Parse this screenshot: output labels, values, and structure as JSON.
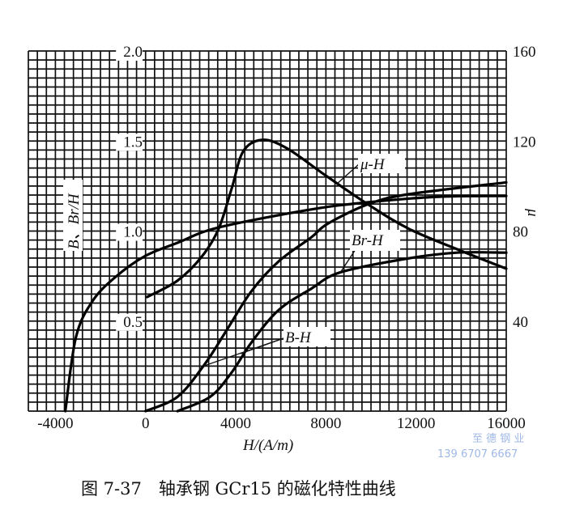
{
  "chart_data": {
    "type": "line",
    "title": "",
    "caption": "图 7-37　轴承钢 GCr15 的磁化特性曲线",
    "xlabel": "H/(A/m)",
    "ylabel_left": "B、Br/H",
    "ylabel_right": "μ",
    "xlim": [
      -5200,
      16000
    ],
    "ylim_left": [
      0,
      2.0
    ],
    "ylim_right": [
      0,
      160
    ],
    "grid": true,
    "x_ticks": [
      "-4000",
      "0",
      "4000",
      "8000",
      "12000",
      "16000"
    ],
    "x_tick_values": [
      -4000,
      0,
      4000,
      8000,
      12000,
      16000
    ],
    "y_left_ticks": [
      "0.5",
      "1.0",
      "1.5",
      "2.0"
    ],
    "y_left_tick_values": [
      0.5,
      1.0,
      1.5,
      2.0
    ],
    "y_right_ticks": [
      "40",
      "80",
      "120",
      "160"
    ],
    "y_right_tick_values": [
      40,
      80,
      120,
      160
    ],
    "series": [
      {
        "axis": "left",
        "points": [
          [
            -3560,
            0
          ],
          [
            -3090,
            0.41
          ],
          [
            -2360,
            0.61
          ],
          [
            -1380,
            0.74
          ],
          [
            -40,
            0.86
          ],
          [
            1420,
            0.935
          ],
          [
            3240,
            1.02
          ],
          [
            7350,
            1.12
          ],
          [
            9890,
            1.16
          ],
          [
            12900,
            1.19
          ],
          [
            16000,
            1.195
          ]
        ]
      },
      {
        "name": "B-H",
        "axis": "left",
        "points": [
          [
            0,
            0
          ],
          [
            1420,
            0.08
          ],
          [
            2620,
            0.26
          ],
          [
            3600,
            0.45
          ],
          [
            4690,
            0.665
          ],
          [
            5890,
            0.83
          ],
          [
            7350,
            0.965
          ],
          [
            8070,
            1.04
          ],
          [
            9890,
            1.15
          ],
          [
            11700,
            1.205
          ],
          [
            16000,
            1.27
          ]
        ]
      },
      {
        "name": "Br-H",
        "axis": "left",
        "points": [
          [
            1420,
            0
          ],
          [
            2870,
            0.08
          ],
          [
            3820,
            0.215
          ],
          [
            4690,
            0.38
          ],
          [
            5890,
            0.56
          ],
          [
            7350,
            0.68
          ],
          [
            8620,
            0.77
          ],
          [
            11500,
            0.845
          ],
          [
            13800,
            0.88
          ],
          [
            16000,
            0.88
          ]
        ]
      },
      {
        "name": "μ-H",
        "axis": "right",
        "points": [
          [
            70,
            50.7
          ],
          [
            1420,
            58
          ],
          [
            2500,
            68.7
          ],
          [
            3240,
            81
          ],
          [
            3820,
            98.9
          ],
          [
            4330,
            115.4
          ],
          [
            5160,
            120.5
          ],
          [
            6250,
            116.9
          ],
          [
            8000,
            104.6
          ],
          [
            9890,
            91.7
          ],
          [
            11700,
            80.9
          ],
          [
            14000,
            71.2
          ],
          [
            16000,
            63.3
          ]
        ]
      }
    ],
    "annotations": {
      "mu_h": "μ-H",
      "br_h": "Br-H",
      "b_h": "B-H"
    }
  },
  "watermark": {
    "name": "至 德 钢 业",
    "phone": "139 6707 6667",
    "color": "#9fb8e6"
  }
}
